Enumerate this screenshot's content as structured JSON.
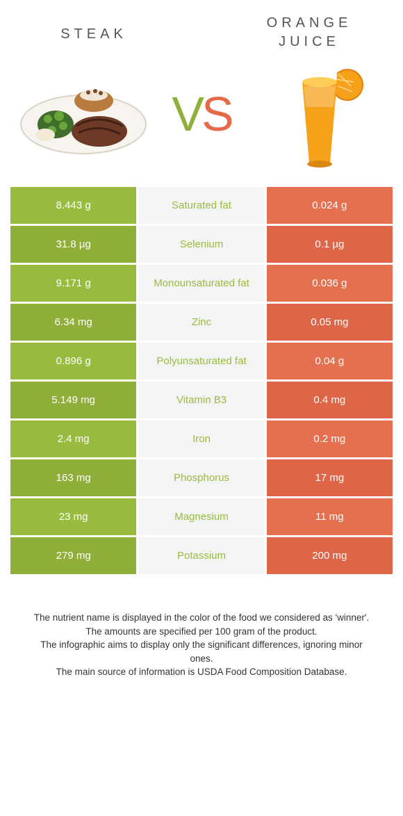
{
  "colors": {
    "green": "#99bb3f",
    "green_alt": "#8fae3a",
    "orange": "#e5704f",
    "orange_alt": "#dc6647",
    "mid_bg": "#f4f4f4",
    "mid_text": "#99bb3f",
    "title_text": "#555555",
    "footer_text": "#333333",
    "background": "#ffffff"
  },
  "header": {
    "left_title": "Steak",
    "right_title": "Orange Juice",
    "vs_left": "V",
    "vs_right": "S"
  },
  "rows": [
    {
      "left": "8.443 g",
      "label": "Saturated fat",
      "right": "0.024 g"
    },
    {
      "left": "31.8 µg",
      "label": "Selenium",
      "right": "0.1 µg"
    },
    {
      "left": "9.171 g",
      "label": "Monounsaturated fat",
      "right": "0.036 g"
    },
    {
      "left": "6.34 mg",
      "label": "Zinc",
      "right": "0.05 mg"
    },
    {
      "left": "0.896 g",
      "label": "Polyunsaturated fat",
      "right": "0.04 g"
    },
    {
      "left": "5.149 mg",
      "label": "Vitamin B3",
      "right": "0.4 mg"
    },
    {
      "left": "2.4 mg",
      "label": "Iron",
      "right": "0.2 mg"
    },
    {
      "left": "163 mg",
      "label": "Phosphorus",
      "right": "17 mg"
    },
    {
      "left": "23 mg",
      "label": "Magnesium",
      "right": "11 mg"
    },
    {
      "left": "279 mg",
      "label": "Potassium",
      "right": "200 mg"
    }
  ],
  "footer": {
    "line1": "The nutrient name is displayed in the color of the food we considered as 'winner'.",
    "line2": "The amounts are specified per 100 gram of the product.",
    "line3": "The infographic aims to display only the significant differences, ignoring minor ones.",
    "line4": "The main source of information is USDA Food Composition Database."
  }
}
